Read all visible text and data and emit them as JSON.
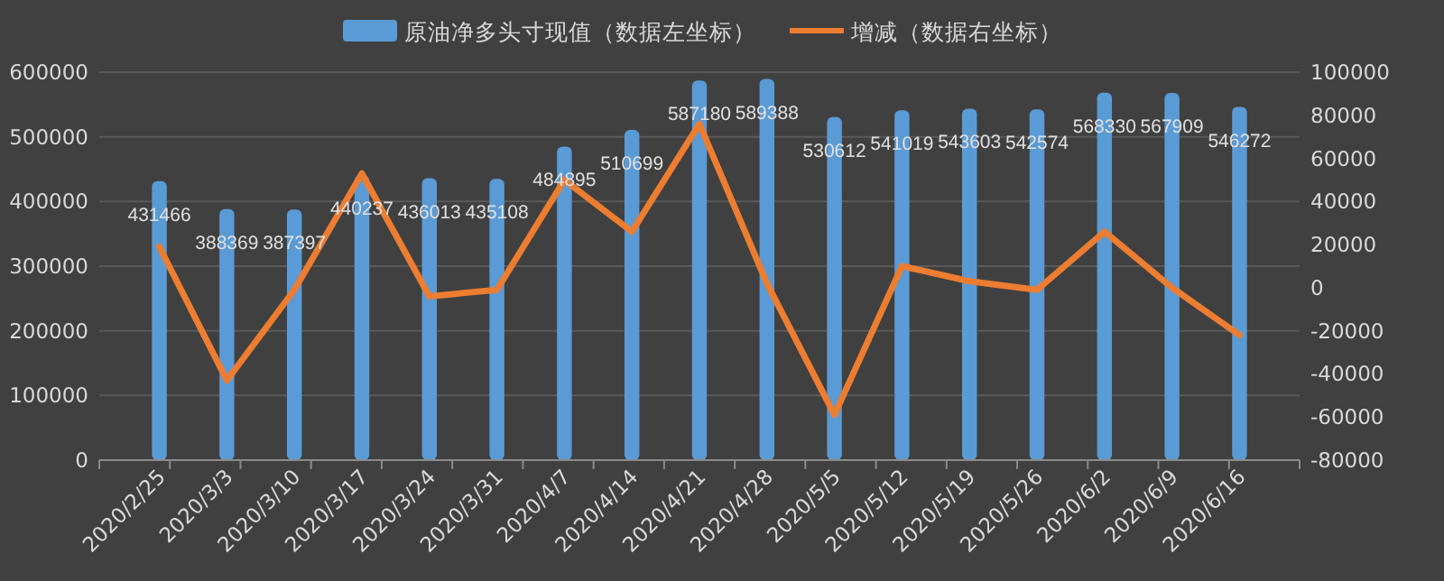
{
  "chart_data": {
    "type": "bar",
    "categories": [
      "2020/2/25",
      "2020/3/3",
      "2020/3/10",
      "2020/3/17",
      "2020/3/24",
      "2020/3/31",
      "2020/4/7",
      "2020/4/14",
      "2020/4/21",
      "2020/4/28",
      "2020/5/5",
      "2020/5/12",
      "2020/5/19",
      "2020/5/26",
      "2020/6/2",
      "2020/6/9",
      "2020/6/16"
    ],
    "series": [
      {
        "name": "原油净多头寸现值（数据左坐标）",
        "color": "#5b9bd5",
        "values": [
          431466,
          388369,
          387397,
          440237,
          436013,
          435108,
          484895,
          510699,
          587180,
          589388,
          530612,
          541019,
          543603,
          542574,
          568330,
          567909,
          546272
        ],
        "value_labels": [
          "431466",
          "388369",
          "387397",
          "440237",
          "436013",
          "435108",
          "484895",
          "510699",
          "587180",
          "589388",
          "530612",
          "541019",
          "543603",
          "542574",
          "568330",
          "567909",
          "546272"
        ]
      },
      {
        "name": "增减（数据右坐标）",
        "type": "line",
        "axis": "y2",
        "color": "#ed7d31",
        "values": [
          19000,
          -43000,
          -1000,
          53000,
          -4000,
          -1000,
          50000,
          26000,
          76000,
          2000,
          -59000,
          10000,
          3000,
          -1000,
          26000,
          0,
          -22000
        ]
      }
    ],
    "ylim": [
      0,
      600000
    ],
    "yticks": [
      0,
      100000,
      200000,
      300000,
      400000,
      500000,
      600000
    ],
    "y2lim": [
      -80000,
      100000
    ],
    "y2ticks": [
      -80000,
      -60000,
      -40000,
      -20000,
      0,
      20000,
      40000,
      60000,
      80000,
      100000
    ],
    "grid": "y",
    "legend": "top",
    "marker": "none",
    "line_style": "solid"
  }
}
